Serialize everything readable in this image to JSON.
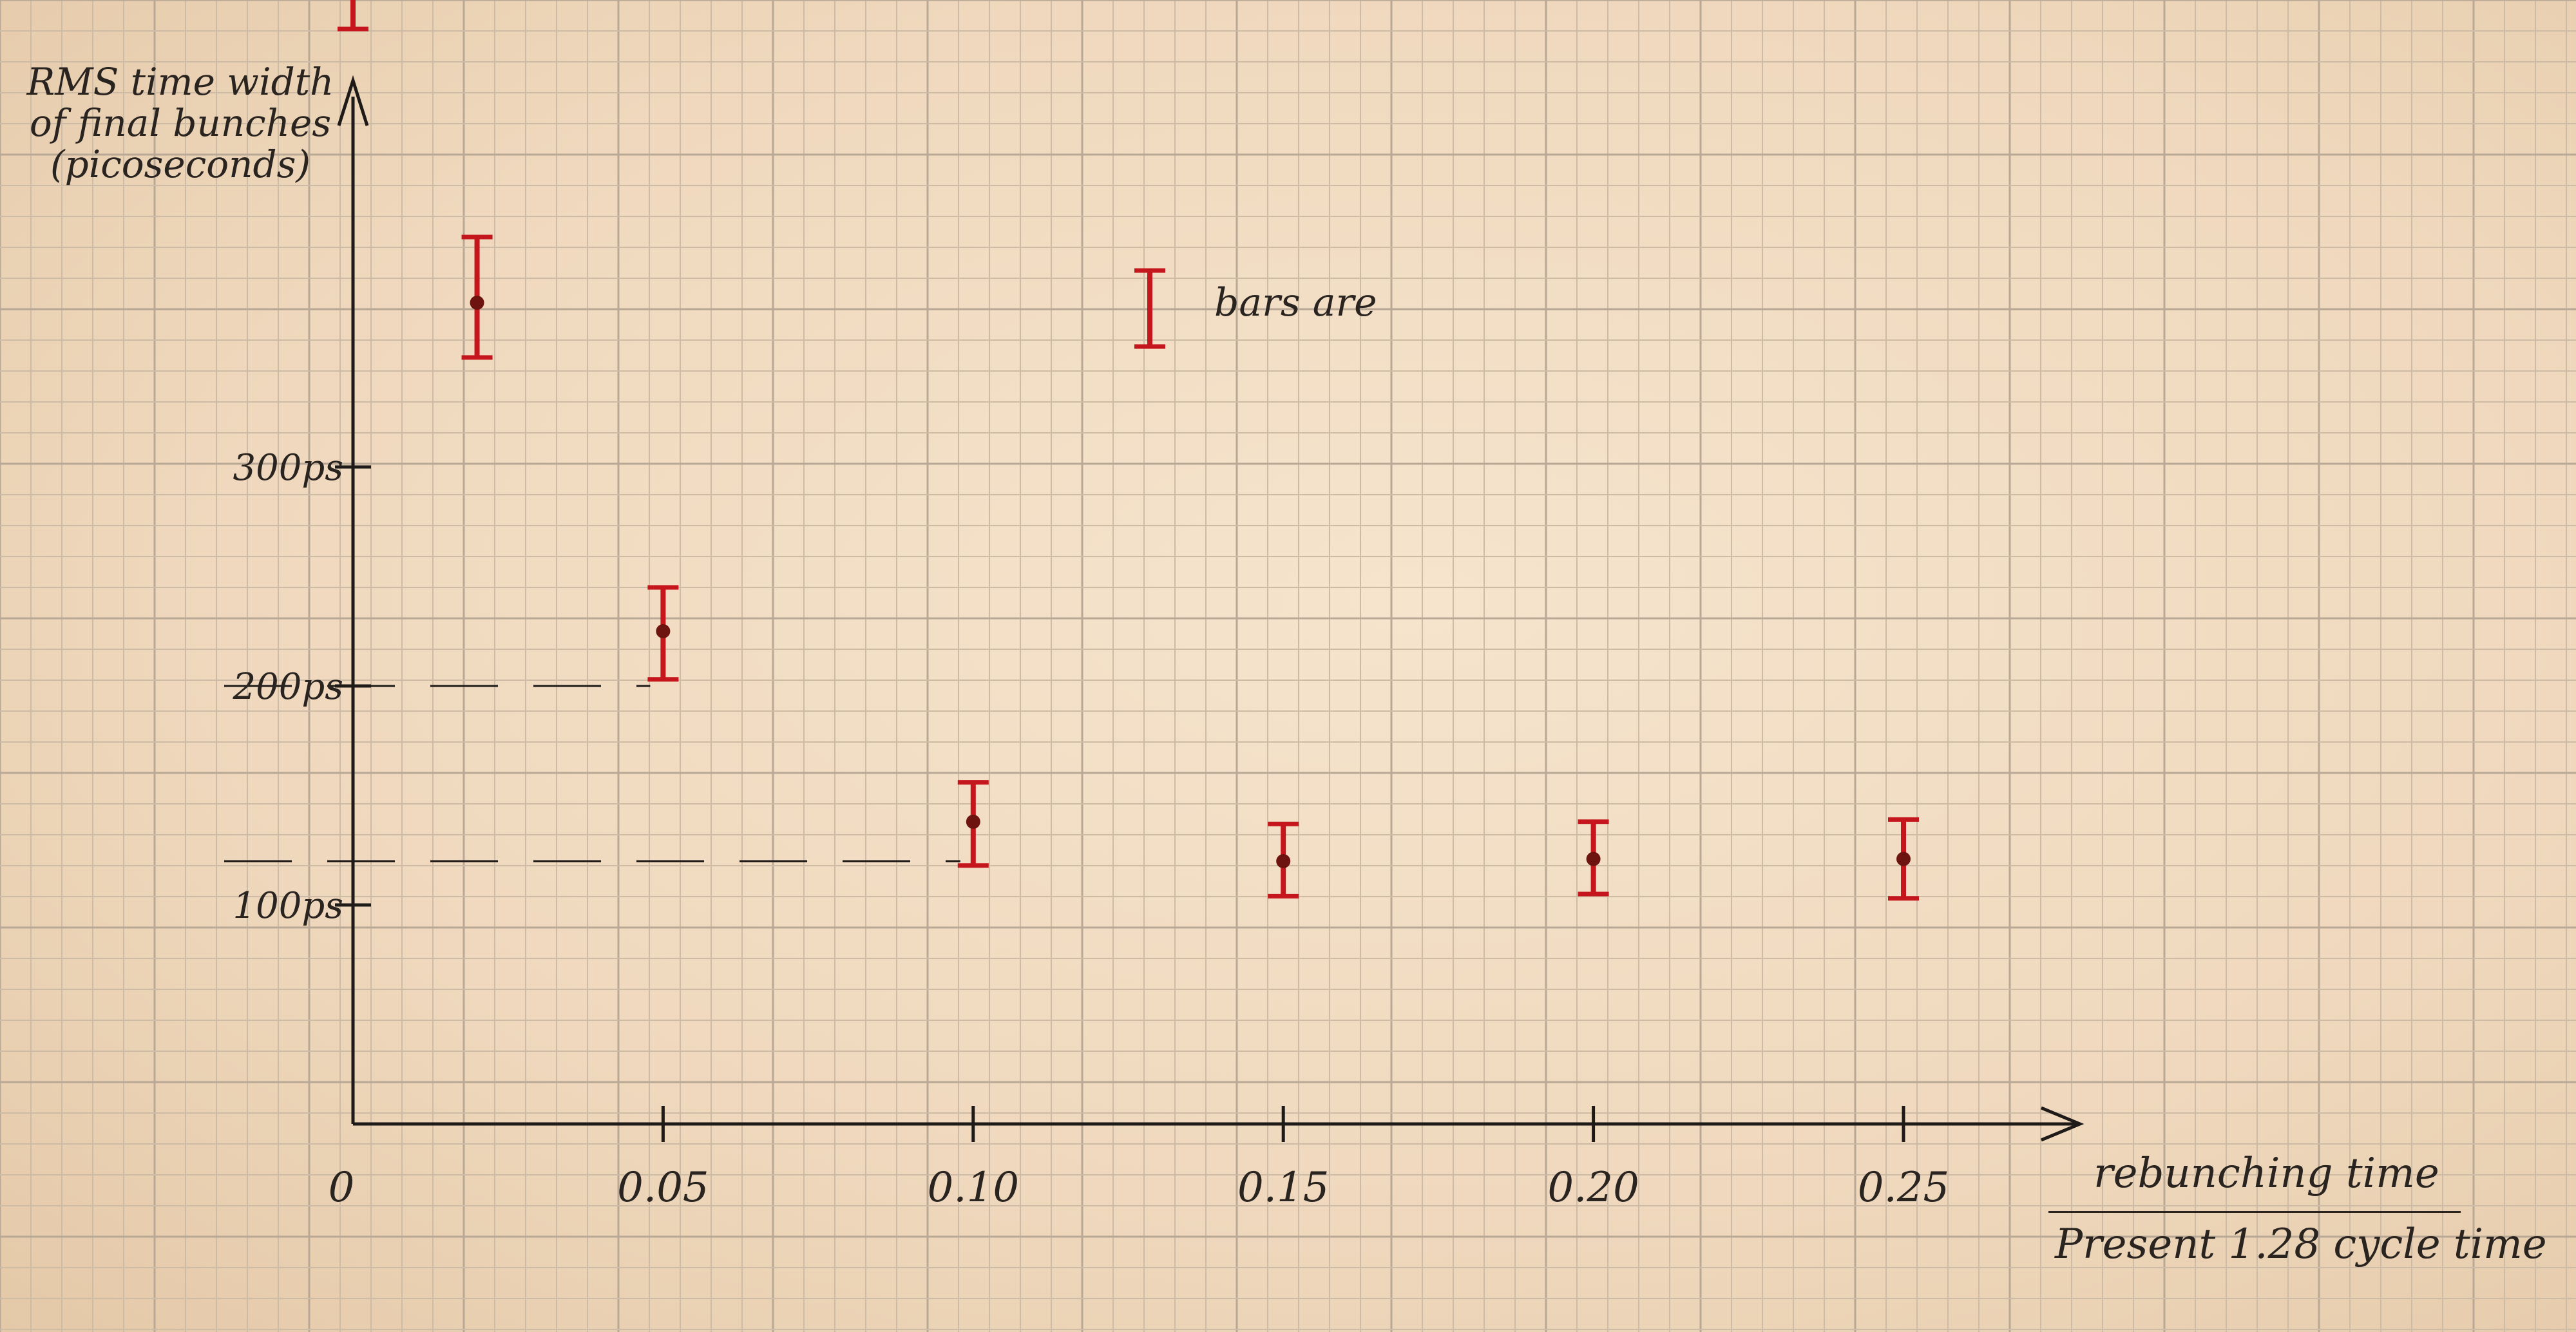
{
  "chart_data": {
    "type": "scatter",
    "title": "",
    "ylabel": "RMS time width of final bunches (picoseconds)",
    "xlabel_numerator": "rebunching time",
    "xlabel_denominator": "Present 1.28 cycle time",
    "x_ticks": [
      "0",
      "0.05",
      "0.10",
      "0.15",
      "0.20",
      "0.25"
    ],
    "y_ticks": [
      "100ps",
      "200ps",
      "300ps"
    ],
    "xlim": [
      0,
      0.28
    ],
    "ylim": [
      0,
      580
    ],
    "grid": true,
    "legend_text": "bars are",
    "point_color": "#c4161c",
    "axis_color": "#1e1a18",
    "points": [
      {
        "x": 0.0,
        "y": 535,
        "err_low": 35,
        "err_high": 30
      },
      {
        "x": 0.02,
        "y": 375,
        "err_low": 25,
        "err_high": 30
      },
      {
        "x": 0.05,
        "y": 225,
        "err_low": 22,
        "err_high": 20
      },
      {
        "x": 0.1,
        "y": 138,
        "err_low": 20,
        "err_high": 18
      },
      {
        "x": 0.15,
        "y": 120,
        "err_low": 16,
        "err_high": 17
      },
      {
        "x": 0.2,
        "y": 121,
        "err_low": 16,
        "err_high": 17
      },
      {
        "x": 0.25,
        "y": 121,
        "err_low": 18,
        "err_high": 18
      }
    ],
    "guide_lines": [
      {
        "y": 200,
        "x_end": 0.05
      },
      {
        "y": 120,
        "x_end": 0.1
      }
    ]
  }
}
